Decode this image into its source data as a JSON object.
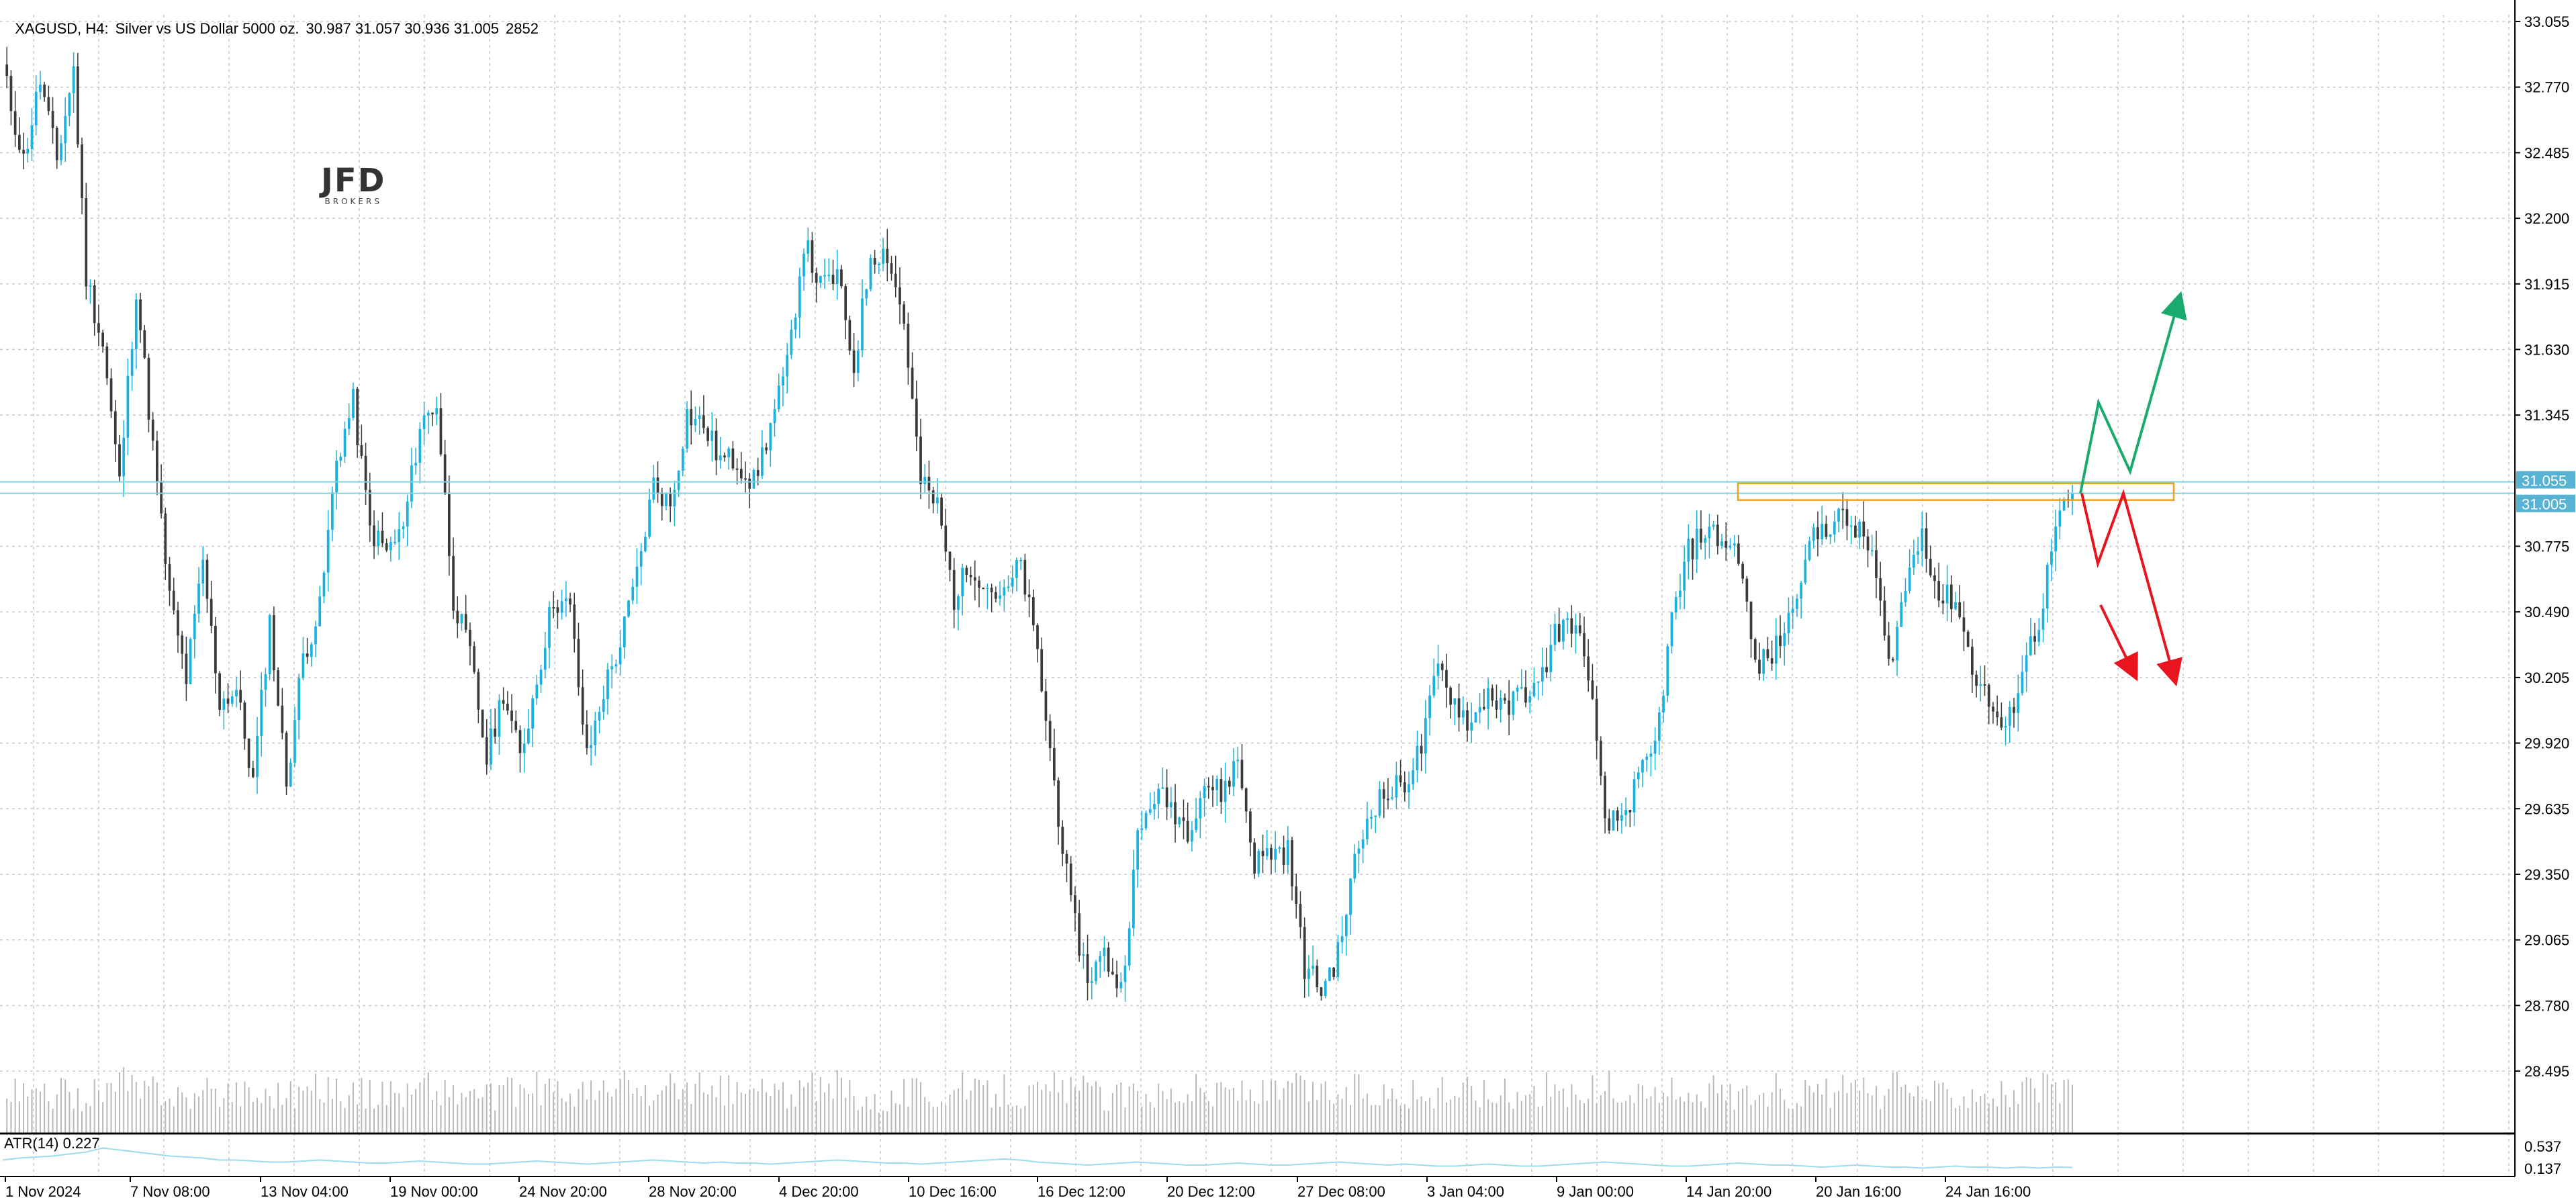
{
  "header": {
    "symbol": "XAGUSD, H4:",
    "description": "Silver vs US Dollar 5000 oz.",
    "ohlc": "30.987 31.057 30.936 31.005",
    "bars": "2852"
  },
  "logo": {
    "name": "JFD",
    "tagline": "BROKERS"
  },
  "indicator": {
    "label": "ATR(14) 0.227",
    "ticks": [
      "0.537",
      "0.137"
    ],
    "line_color": "#9adcec"
  },
  "colors": {
    "bull": "#1ab1dd",
    "bear": "#3a3a3a",
    "grid": "#c8c8c8",
    "level_line": "#7fd3d9",
    "zone": "#f0a020",
    "scenario_up": "#1aaa6e",
    "scenario_down": "#e8141e",
    "label_bg": "#56b3d4",
    "volume": "#b8b8b8"
  },
  "chart_data": {
    "type": "candlestick",
    "timeframe": "H4",
    "ylim": [
      28.495,
      33.055
    ],
    "y_ticks": [
      "33.055",
      "32.770",
      "32.485",
      "32.200",
      "31.915",
      "31.630",
      "31.345",
      "31.055",
      "31.005",
      "30.775",
      "30.490",
      "30.205",
      "29.920",
      "29.635",
      "29.350",
      "29.065",
      "28.780",
      "28.495"
    ],
    "x_ticks": [
      "1 Nov 2024",
      "7 Nov 08:00",
      "13 Nov 04:00",
      "19 Nov 00:00",
      "24 Nov 20:00",
      "28 Nov 20:00",
      "4 Dec 20:00",
      "10 Dec 16:00",
      "16 Dec 12:00",
      "20 Dec 12:00",
      "27 Dec 08:00",
      "3 Jan 04:00",
      "9 Jan 00:00",
      "14 Jan 20:00",
      "20 Jan 16:00",
      "24 Jan 16:00"
    ],
    "price_labels": {
      "ask": "31.055",
      "bid": "31.005"
    },
    "path": [
      [
        0,
        32.85
      ],
      [
        5,
        32.45
      ],
      [
        9,
        32.8
      ],
      [
        13,
        32.45
      ],
      [
        17,
        32.85
      ],
      [
        20,
        31.95
      ],
      [
        24,
        31.65
      ],
      [
        28,
        31.05
      ],
      [
        32,
        31.9
      ],
      [
        36,
        31.2
      ],
      [
        40,
        30.55
      ],
      [
        44,
        30.2
      ],
      [
        48,
        30.7
      ],
      [
        52,
        30.1
      ],
      [
        56,
        30.15
      ],
      [
        60,
        29.75
      ],
      [
        64,
        30.45
      ],
      [
        68,
        29.75
      ],
      [
        72,
        30.3
      ],
      [
        76,
        30.5
      ],
      [
        80,
        31.15
      ],
      [
        84,
        31.4
      ],
      [
        88,
        30.85
      ],
      [
        92,
        30.75
      ],
      [
        96,
        30.85
      ],
      [
        100,
        31.3
      ],
      [
        104,
        31.4
      ],
      [
        108,
        30.55
      ],
      [
        112,
        30.3
      ],
      [
        116,
        29.85
      ],
      [
        120,
        30.15
      ],
      [
        124,
        29.85
      ],
      [
        128,
        30.2
      ],
      [
        132,
        30.55
      ],
      [
        136,
        30.5
      ],
      [
        140,
        29.85
      ],
      [
        144,
        30.15
      ],
      [
        148,
        30.35
      ],
      [
        152,
        30.65
      ],
      [
        156,
        31.05
      ],
      [
        160,
        30.95
      ],
      [
        164,
        31.35
      ],
      [
        168,
        31.3
      ],
      [
        172,
        31.15
      ],
      [
        176,
        31.15
      ],
      [
        180,
        31.05
      ],
      [
        184,
        31.3
      ],
      [
        188,
        31.55
      ],
      [
        192,
        32.1
      ],
      [
        196,
        31.9
      ],
      [
        200,
        31.95
      ],
      [
        204,
        31.55
      ],
      [
        208,
        32.05
      ],
      [
        212,
        32.05
      ],
      [
        216,
        31.75
      ],
      [
        220,
        31.05
      ],
      [
        224,
        30.95
      ],
      [
        228,
        30.55
      ],
      [
        232,
        30.7
      ],
      [
        236,
        30.6
      ],
      [
        240,
        30.55
      ],
      [
        244,
        30.7
      ],
      [
        248,
        30.3
      ],
      [
        252,
        29.75
      ],
      [
        256,
        29.2
      ],
      [
        260,
        28.9
      ],
      [
        264,
        29.0
      ],
      [
        268,
        28.85
      ],
      [
        272,
        29.5
      ],
      [
        276,
        29.7
      ],
      [
        280,
        29.65
      ],
      [
        284,
        29.55
      ],
      [
        288,
        29.75
      ],
      [
        292,
        29.7
      ],
      [
        296,
        29.85
      ],
      [
        300,
        29.4
      ],
      [
        304,
        29.45
      ],
      [
        308,
        29.45
      ],
      [
        312,
        28.95
      ],
      [
        316,
        28.85
      ],
      [
        320,
        29.0
      ],
      [
        324,
        29.4
      ],
      [
        328,
        29.65
      ],
      [
        332,
        29.7
      ],
      [
        336,
        29.75
      ],
      [
        340,
        29.9
      ],
      [
        344,
        30.25
      ],
      [
        348,
        30.1
      ],
      [
        352,
        30.0
      ],
      [
        356,
        30.15
      ],
      [
        360,
        30.05
      ],
      [
        364,
        30.15
      ],
      [
        368,
        30.15
      ],
      [
        372,
        30.4
      ],
      [
        376,
        30.45
      ],
      [
        380,
        30.25
      ],
      [
        384,
        29.55
      ],
      [
        388,
        29.6
      ],
      [
        392,
        29.75
      ],
      [
        396,
        29.9
      ],
      [
        400,
        30.45
      ],
      [
        404,
        30.75
      ],
      [
        408,
        30.85
      ],
      [
        412,
        30.8
      ],
      [
        416,
        30.75
      ],
      [
        420,
        30.25
      ],
      [
        424,
        30.3
      ],
      [
        428,
        30.45
      ],
      [
        432,
        30.75
      ],
      [
        436,
        30.85
      ],
      [
        440,
        30.9
      ],
      [
        444,
        30.85
      ],
      [
        448,
        30.75
      ],
      [
        452,
        30.25
      ],
      [
        456,
        30.6
      ],
      [
        460,
        30.85
      ],
      [
        464,
        30.55
      ],
      [
        468,
        30.55
      ],
      [
        472,
        30.25
      ],
      [
        476,
        30.1
      ],
      [
        480,
        29.95
      ],
      [
        484,
        30.25
      ],
      [
        488,
        30.45
      ],
      [
        492,
        30.85
      ],
      [
        496,
        31.005
      ]
    ],
    "volume_profile": [
      50,
      48,
      46,
      50,
      45,
      52,
      55,
      60,
      50,
      58,
      48,
      45,
      50,
      55,
      52,
      48,
      52,
      50,
      55,
      60,
      52,
      50,
      48,
      55,
      50,
      60,
      52,
      48,
      50,
      45,
      50,
      55,
      55,
      50,
      52,
      48,
      52,
      60,
      50,
      48,
      55,
      58,
      45,
      52,
      50,
      55,
      50,
      48,
      55,
      52,
      60,
      48,
      40,
      45,
      52,
      50,
      48,
      55,
      50,
      52,
      55,
      48,
      50,
      58,
      52,
      50,
      45,
      48,
      55,
      50,
      52,
      55,
      48,
      55,
      52,
      48,
      50,
      55,
      52,
      50,
      48,
      55,
      50,
      52,
      48,
      45,
      50,
      55,
      52,
      48,
      50,
      52,
      55,
      50,
      48,
      52,
      55,
      50,
      48,
      52,
      50,
      55,
      52,
      48,
      50,
      52,
      55,
      50,
      48,
      52,
      55,
      50,
      48,
      55,
      52,
      50,
      48,
      52,
      55,
      50,
      48,
      52,
      55,
      50,
      48,
      52
    ],
    "atr_profile": [
      0.3,
      0.32,
      0.33,
      0.34,
      0.36,
      0.38,
      0.42,
      0.4,
      0.38,
      0.36,
      0.34,
      0.33,
      0.32,
      0.3,
      0.3,
      0.29,
      0.28,
      0.28,
      0.29,
      0.3,
      0.29,
      0.28,
      0.27,
      0.27,
      0.28,
      0.29,
      0.28,
      0.27,
      0.26,
      0.26,
      0.27,
      0.28,
      0.29,
      0.28,
      0.27,
      0.26,
      0.27,
      0.28,
      0.29,
      0.3,
      0.29,
      0.28,
      0.27,
      0.28,
      0.27,
      0.27,
      0.26,
      0.27,
      0.28,
      0.29,
      0.3,
      0.29,
      0.28,
      0.27,
      0.27,
      0.26,
      0.27,
      0.28,
      0.29,
      0.3,
      0.31,
      0.3,
      0.28,
      0.27,
      0.26,
      0.25,
      0.26,
      0.27,
      0.28,
      0.27,
      0.26,
      0.25,
      0.25,
      0.26,
      0.27,
      0.26,
      0.25,
      0.25,
      0.26,
      0.27,
      0.28,
      0.27,
      0.26,
      0.25,
      0.26,
      0.25,
      0.24,
      0.24,
      0.25,
      0.26,
      0.25,
      0.24,
      0.24,
      0.25,
      0.26,
      0.27,
      0.28,
      0.27,
      0.26,
      0.25,
      0.24,
      0.24,
      0.25,
      0.26,
      0.27,
      0.26,
      0.25,
      0.25,
      0.24,
      0.23,
      0.24,
      0.25,
      0.24,
      0.23,
      0.23,
      0.22,
      0.23,
      0.24,
      0.23,
      0.23,
      0.22,
      0.23,
      0.22,
      0.23,
      0.227
    ],
    "resistance_zone": [
      31.005,
      31.06
    ],
    "horizontal_lines": [
      31.055,
      31.005
    ],
    "scenario_up": [
      [
        31.005
      ],
      [
        31.4
      ],
      [
        31.1
      ],
      [
        31.85
      ]
    ],
    "scenario_down": [
      [
        31.005
      ],
      [
        30.7
      ],
      [
        31.005
      ],
      [
        30.2
      ]
    ],
    "scenario_down_alt": [
      30.52,
      30.22
    ]
  }
}
